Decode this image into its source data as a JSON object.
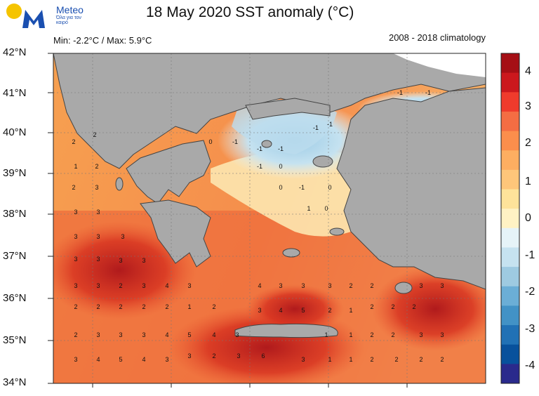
{
  "header": {
    "brand": "Meteo",
    "tagline": "Όλα για τον καιρό",
    "title": "18 May 2020 SST anomaly (°C)",
    "minmax": "Min: -2.2°C / Max: 5.9°C",
    "climatology": "2008 - 2018 climatology"
  },
  "map": {
    "lat_labels": [
      "42°N",
      "41°N",
      "40°N",
      "39°N",
      "38°N",
      "37°N",
      "36°N",
      "35°N",
      "34°N"
    ],
    "land_color": "#a9a9a9",
    "border_color": "#444444"
  },
  "colorbar": {
    "labels": [
      "4",
      "3",
      "2",
      "1",
      "0",
      "-1",
      "-2",
      "-3",
      "-4"
    ],
    "colors": [
      "#a50f15",
      "#cb181d",
      "#ef3b2c",
      "#f46d43",
      "#fb8e4c",
      "#fdae61",
      "#fec67a",
      "#fee39a",
      "#fff2c4",
      "#e6f3f8",
      "#c6e2f0",
      "#9ecae1",
      "#6baed6",
      "#4292c6",
      "#2171b5",
      "#08519c",
      "#2a2a8c"
    ]
  },
  "anomaly_labels": [
    {
      "v": "2"
    },
    {
      "v": "2"
    },
    {
      "v": "1"
    },
    {
      "v": "2"
    },
    {
      "v": "2"
    },
    {
      "v": "3"
    },
    {
      "v": "3"
    },
    {
      "v": "3"
    },
    {
      "v": "3"
    },
    {
      "v": "3"
    },
    {
      "v": "3"
    },
    {
      "v": "3"
    },
    {
      "v": "3"
    },
    {
      "v": "3"
    },
    {
      "v": "3"
    },
    {
      "v": "3"
    },
    {
      "v": "3"
    },
    {
      "v": "2"
    },
    {
      "v": "3"
    },
    {
      "v": "4"
    },
    {
      "v": "3"
    },
    {
      "v": "2"
    },
    {
      "v": "2"
    },
    {
      "v": "2"
    },
    {
      "v": "2"
    },
    {
      "v": "2"
    },
    {
      "v": "1"
    },
    {
      "v": "2"
    },
    {
      "v": "2"
    },
    {
      "v": "3"
    },
    {
      "v": "3"
    },
    {
      "v": "3"
    },
    {
      "v": "4"
    },
    {
      "v": "5"
    },
    {
      "v": "4"
    },
    {
      "v": "3"
    },
    {
      "v": "4"
    },
    {
      "v": "3"
    },
    {
      "v": "3"
    },
    {
      "v": "3"
    },
    {
      "v": "4"
    },
    {
      "v": "5"
    },
    {
      "v": "6"
    },
    {
      "v": "3"
    },
    {
      "v": "2"
    },
    {
      "v": "3"
    },
    {
      "v": "3"
    },
    {
      "v": "4"
    },
    {
      "v": "5"
    },
    {
      "v": "4"
    },
    {
      "v": "3"
    },
    {
      "v": "3"
    },
    {
      "v": "1"
    },
    {
      "v": "1"
    },
    {
      "v": "2"
    },
    {
      "v": "2"
    },
    {
      "v": "2"
    },
    {
      "v": "2"
    },
    {
      "v": "1"
    },
    {
      "v": "0"
    },
    {
      "v": "-1"
    },
    {
      "v": "-1"
    },
    {
      "v": "-1"
    },
    {
      "v": "0"
    },
    {
      "v": "-1"
    },
    {
      "v": "0"
    },
    {
      "v": "1"
    },
    {
      "v": "0"
    },
    {
      "v": "0"
    },
    {
      "v": "-1"
    },
    {
      "v": "-1"
    },
    {
      "v": "-1"
    },
    {
      "v": "-1"
    },
    {
      "v": "-1"
    },
    {
      "v": "2"
    },
    {
      "v": "2"
    },
    {
      "v": "3"
    },
    {
      "v": "3"
    },
    {
      "v": "2"
    },
    {
      "v": "3"
    },
    {
      "v": "2"
    },
    {
      "v": "2"
    },
    {
      "v": "2"
    },
    {
      "v": "3"
    },
    {
      "v": "3"
    },
    {
      "v": "2"
    },
    {
      "v": "1"
    },
    {
      "v": "2"
    },
    {
      "v": "1"
    }
  ]
}
